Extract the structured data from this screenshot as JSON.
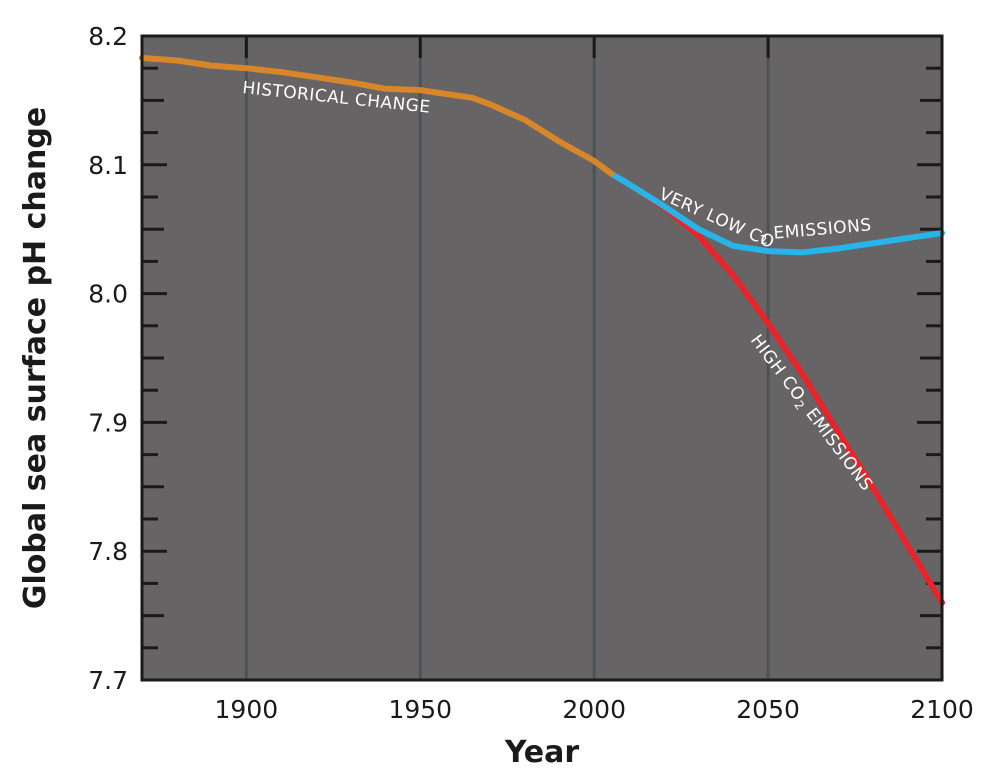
{
  "chart_data": {
    "type": "line",
    "title": "",
    "xlabel": "Year",
    "ylabel": "Global sea surface pH change",
    "xlim": [
      1870,
      2100
    ],
    "ylim": [
      7.7,
      8.2
    ],
    "xticks": [
      "1900",
      "1950",
      "2000",
      "2050",
      "2100"
    ],
    "yticks": [
      "7.7",
      "7.8",
      "7.9",
      "8.0",
      "8.1",
      "8.2"
    ],
    "grid": "vertical",
    "background": "#666465",
    "series": [
      {
        "name": "HISTORICAL CHANGE",
        "color": "#d8862a",
        "x": [
          1870,
          1880,
          1890,
          1900,
          1910,
          1920,
          1930,
          1940,
          1950,
          1960,
          1965,
          1970,
          1980,
          1990,
          2000,
          2005
        ],
        "y": [
          8.183,
          8.181,
          8.177,
          8.175,
          8.172,
          8.168,
          8.164,
          8.159,
          8.158,
          8.154,
          8.152,
          8.147,
          8.135,
          8.118,
          8.103,
          8.093
        ]
      },
      {
        "name": "VERY LOW CO2 EMISSIONS",
        "color": "#27b4e8",
        "x": [
          2005,
          2010,
          2020,
          2030,
          2040,
          2050,
          2060,
          2070,
          2080,
          2090,
          2100
        ],
        "y": [
          8.093,
          8.085,
          8.068,
          8.05,
          8.037,
          8.033,
          8.032,
          8.035,
          8.039,
          8.043,
          8.047
        ]
      },
      {
        "name": "HIGH CO2 EMISSIONS",
        "color": "#e8232a",
        "x": [
          2005,
          2010,
          2020,
          2030,
          2040,
          2050,
          2060,
          2070,
          2080,
          2090,
          2100
        ],
        "y": [
          8.093,
          8.085,
          8.067,
          8.045,
          8.014,
          7.977,
          7.937,
          7.893,
          7.85,
          7.805,
          7.76
        ]
      }
    ],
    "annotations": {
      "historical": "HISTORICAL CHANGE",
      "low_prefix": "VERY LOW CO",
      "low_sub": "2",
      "low_suffix": " EMISSIONS",
      "high_prefix": "HIGH CO",
      "high_sub": "2",
      "high_suffix": " EMISSIONS"
    }
  }
}
